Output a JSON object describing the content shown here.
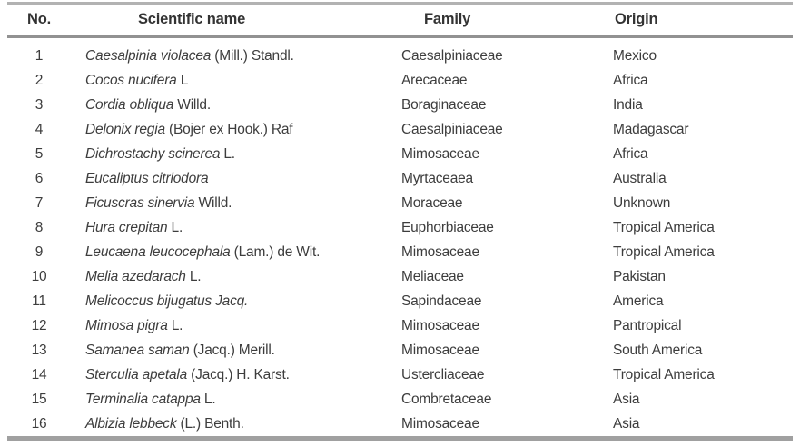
{
  "colors": {
    "page-bg": "#ffffff",
    "text": "#3d3d3d",
    "header-text": "#333333",
    "rule-top": "#b2b2b2",
    "rule-mid": "#929292",
    "rule-bottom": "#a0a0a0"
  },
  "table": {
    "columns": [
      {
        "label": "No."
      },
      {
        "label": "Scientific name"
      },
      {
        "label": "Family"
      },
      {
        "label": "Origin"
      }
    ],
    "rows": [
      {
        "no": "1",
        "name_italic": "Caesalpinia violacea",
        "name_author": "(Mill.) Standl.",
        "family": "Caesalpiniaceae",
        "origin": "Mexico"
      },
      {
        "no": "2",
        "name_italic": "Cocos nucifera",
        "name_author": "L",
        "family": "Arecaceae",
        "origin": "Africa"
      },
      {
        "no": "3",
        "name_italic": "Cordia obliqua",
        "name_author": "Willd.",
        "family": "Boraginaceae",
        "origin": "India"
      },
      {
        "no": "4",
        "name_italic": "Delonix regia",
        "name_author": "(Bojer ex Hook.) Raf",
        "family": "Caesalpiniaceae",
        "origin": "Madagascar"
      },
      {
        "no": "5",
        "name_italic": "Dichrostachy scinerea",
        "name_author": "L.",
        "family": "Mimosaceae",
        "origin": "Africa"
      },
      {
        "no": "6",
        "name_italic": "Eucaliptus citriodora",
        "name_author": "",
        "family": "Myrtaceaea",
        "origin": "Australia"
      },
      {
        "no": "7",
        "name_italic": "Ficuscras sinervia",
        "name_author": "Willd.",
        "family": "Moraceae",
        "origin": "Unknown"
      },
      {
        "no": "8",
        "name_italic": "Hura crepitan",
        "name_author": "L.",
        "family": "Euphorbiaceae",
        "origin": "Tropical America"
      },
      {
        "no": "9",
        "name_italic": "Leucaena leucocephala",
        "name_author": "(Lam.) de Wit.",
        "family": "Mimosaceae",
        "origin": "Tropical America"
      },
      {
        "no": "10",
        "name_italic": "Melia azedarach",
        "name_author": "L.",
        "family": "Meliaceae",
        "origin": "Pakistan"
      },
      {
        "no": "11",
        "name_italic": "Melicoccus bijugatus Jacq.",
        "name_author": "",
        "family": "Sapindaceae",
        "origin": "America"
      },
      {
        "no": "12",
        "name_italic": "Mimosa pigra",
        "name_author": "L.",
        "family": "Mimosaceae",
        "origin": "Pantropical"
      },
      {
        "no": "13",
        "name_italic": "Samanea saman",
        "name_author": "(Jacq.) Merill.",
        "family": "Mimosaceae",
        "origin": "South America"
      },
      {
        "no": "14",
        "name_italic": "Sterculia apetala",
        "name_author": "(Jacq.) H. Karst.",
        "family": "Ustercliaceae",
        "origin": "Tropical America"
      },
      {
        "no": "15",
        "name_italic": "Terminalia catappa",
        "name_author": "L.",
        "family": "Combretaceae",
        "origin": "Asia"
      },
      {
        "no": "16",
        "name_italic": "Albizia lebbeck",
        "name_author": "(L.) Benth.",
        "family": "Mimosaceae",
        "origin": "Asia"
      }
    ]
  }
}
